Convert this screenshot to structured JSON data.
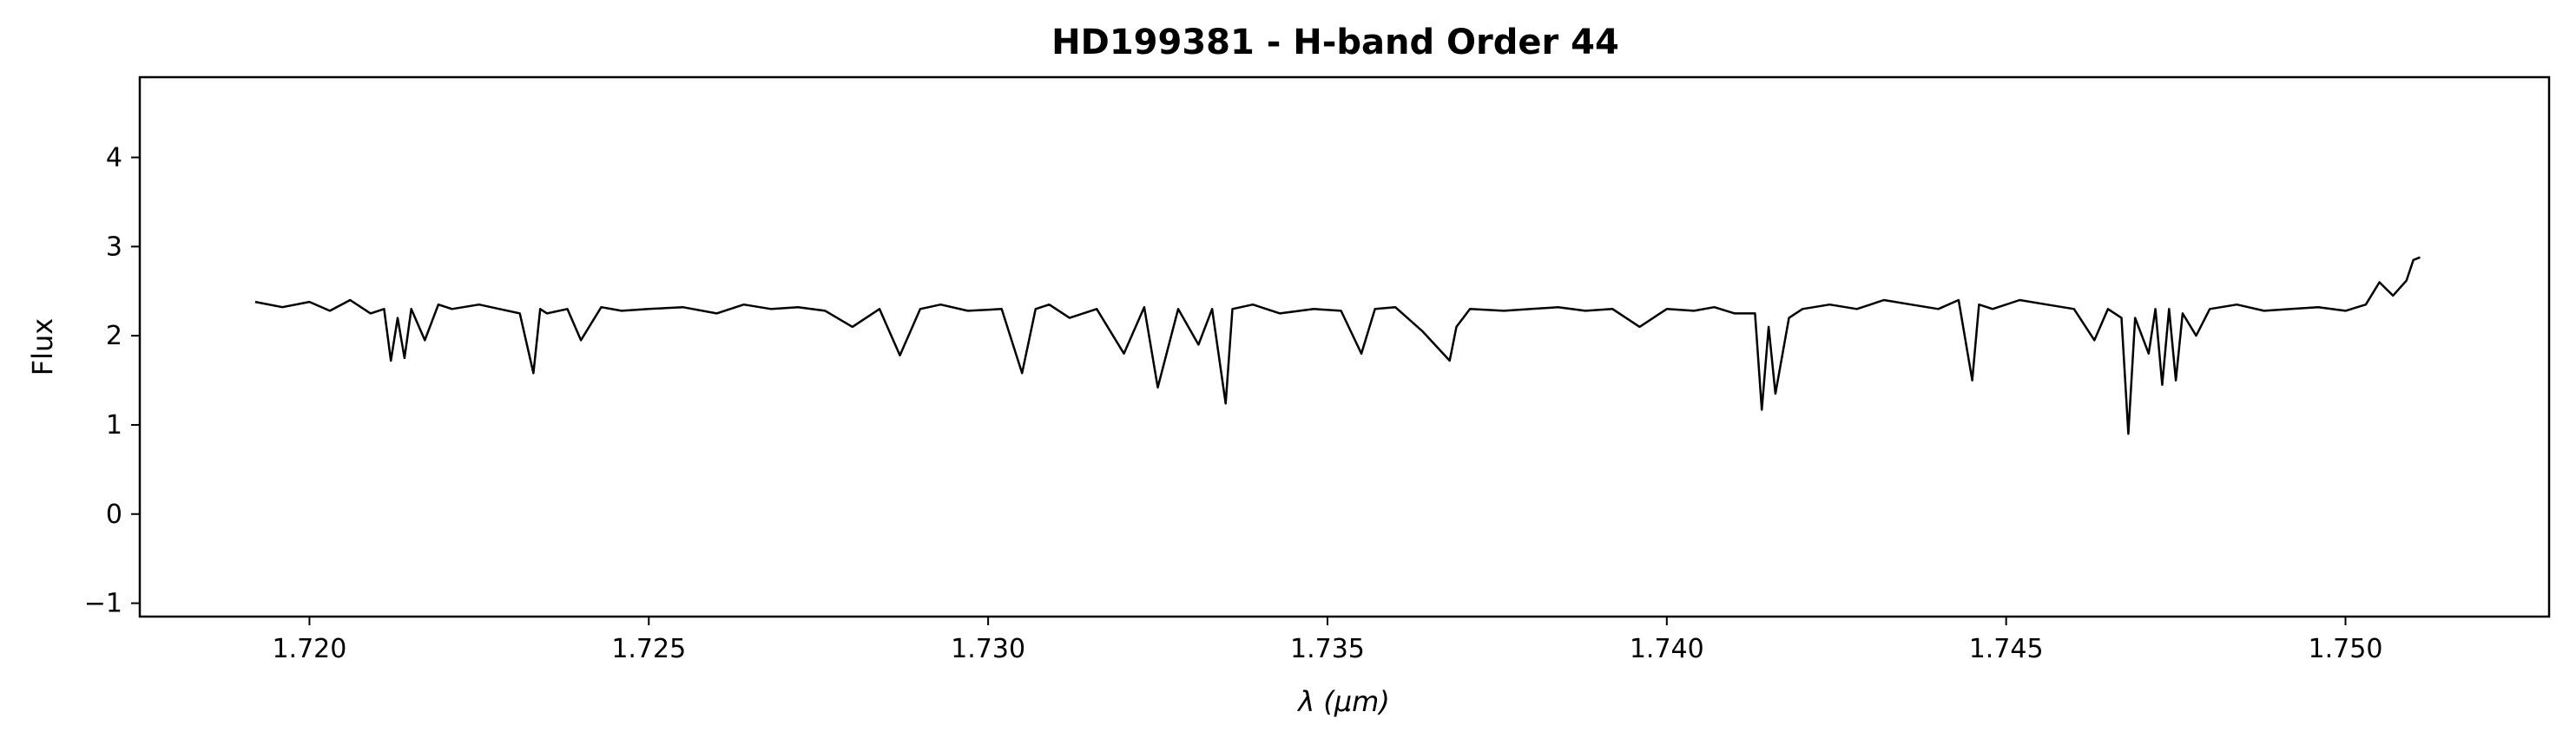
{
  "chart_data": {
    "type": "line",
    "title": "HD199381 - H-band Order 44",
    "xlabel": "λ (μm)",
    "ylabel": "Flux",
    "xlim": [
      1.7175,
      1.753
    ],
    "ylim": [
      -1.15,
      4.9
    ],
    "xticks": [
      1.72,
      1.725,
      1.73,
      1.735,
      1.74,
      1.745,
      1.75
    ],
    "xtick_labels": [
      "1.720",
      "1.725",
      "1.730",
      "1.735",
      "1.740",
      "1.745",
      "1.750"
    ],
    "yticks": [
      -1,
      0,
      1,
      2,
      3,
      4
    ],
    "ytick_labels": [
      "−1",
      "0",
      "1",
      "2",
      "3",
      "4"
    ],
    "grid": false,
    "line_color": "#000000",
    "series": [
      {
        "x": [
          1.7192,
          1.7196,
          1.72,
          1.7203,
          1.7206,
          1.7209,
          1.7211,
          1.7212,
          1.7213,
          1.7214,
          1.7215,
          1.7217,
          1.7219,
          1.7221,
          1.7225,
          1.7228,
          1.7231,
          1.7233,
          1.7234,
          1.7235,
          1.7238,
          1.724,
          1.7243,
          1.7246,
          1.725,
          1.7255,
          1.726,
          1.7264,
          1.7268,
          1.7272,
          1.7276,
          1.728,
          1.7284,
          1.7287,
          1.729,
          1.7293,
          1.7297,
          1.7302,
          1.7305,
          1.7307,
          1.7309,
          1.7312,
          1.7316,
          1.732,
          1.7323,
          1.7325,
          1.7328,
          1.7331,
          1.7333,
          1.7335,
          1.7336,
          1.7339,
          1.7343,
          1.7348,
          1.7352,
          1.7355,
          1.7357,
          1.736,
          1.7364,
          1.7368,
          1.7369,
          1.7371,
          1.7376,
          1.738,
          1.7384,
          1.7388,
          1.7392,
          1.7396,
          1.74,
          1.7404,
          1.7407,
          1.741,
          1.7413,
          1.7414,
          1.7415,
          1.7416,
          1.7418,
          1.742,
          1.7424,
          1.7428,
          1.7432,
          1.7436,
          1.744,
          1.7443,
          1.7445,
          1.7446,
          1.7448,
          1.7452,
          1.7456,
          1.746,
          1.7463,
          1.7465,
          1.7467,
          1.7468,
          1.7469,
          1.7471,
          1.7472,
          1.7473,
          1.7474,
          1.7475,
          1.7476,
          1.7478,
          1.748,
          1.7484,
          1.7488,
          1.7492,
          1.7496,
          1.75,
          1.7503,
          1.7505,
          1.7507,
          1.7509,
          1.751,
          1.7511
        ],
        "y": [
          2.38,
          2.32,
          2.38,
          2.28,
          2.4,
          2.25,
          2.3,
          1.72,
          2.2,
          1.75,
          2.3,
          1.95,
          2.35,
          2.3,
          2.35,
          2.3,
          2.25,
          1.58,
          2.3,
          2.25,
          2.3,
          1.95,
          2.32,
          2.28,
          2.3,
          2.32,
          2.25,
          2.35,
          2.3,
          2.32,
          2.28,
          2.1,
          2.3,
          1.78,
          2.3,
          2.35,
          2.28,
          2.3,
          1.58,
          2.3,
          2.35,
          2.2,
          2.3,
          1.8,
          2.32,
          1.42,
          2.3,
          1.9,
          2.3,
          1.24,
          2.3,
          2.35,
          2.25,
          2.3,
          2.28,
          1.8,
          2.3,
          2.32,
          2.05,
          1.72,
          2.1,
          2.3,
          2.28,
          2.3,
          2.32,
          2.28,
          2.3,
          2.1,
          2.3,
          2.28,
          2.32,
          2.25,
          2.25,
          1.17,
          2.1,
          1.35,
          2.2,
          2.3,
          2.35,
          2.3,
          2.4,
          2.35,
          2.3,
          2.4,
          1.5,
          2.35,
          2.3,
          2.4,
          2.35,
          2.3,
          1.95,
          2.3,
          2.2,
          0.9,
          2.2,
          1.8,
          2.3,
          1.45,
          2.3,
          1.5,
          2.25,
          2.0,
          2.3,
          2.35,
          2.28,
          2.3,
          2.32,
          2.28,
          2.35,
          2.6,
          2.45,
          2.62,
          2.85,
          2.88
        ]
      }
    ]
  }
}
